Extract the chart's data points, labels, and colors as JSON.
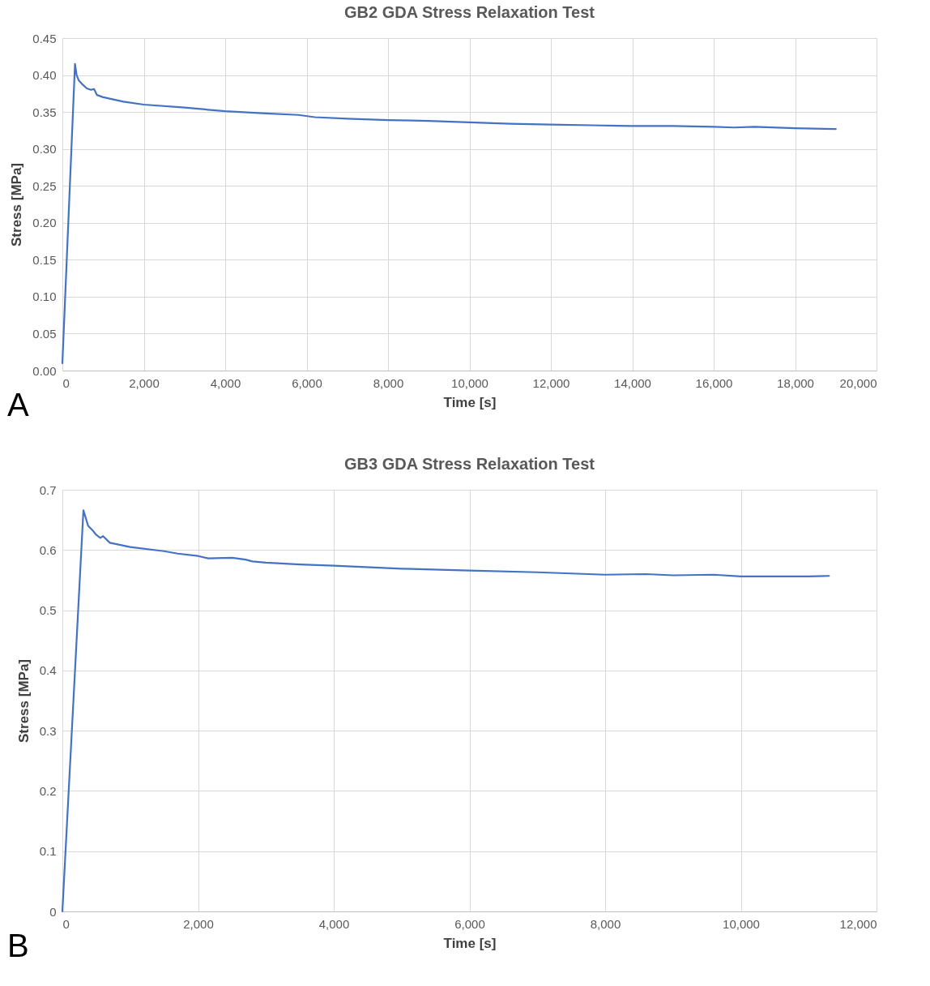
{
  "chart_data": [
    {
      "type": "line",
      "title": "GB2 GDA Stress Relaxation Test",
      "xlabel": "Time [s]",
      "ylabel": "Stress [MPa]",
      "annotations": [
        "A"
      ],
      "grid": true,
      "marker": "none",
      "line_style": "solid",
      "xlim": [
        0,
        20000
      ],
      "ylim": [
        0,
        0.45
      ],
      "xticks": [
        0,
        {
          "value": 2000,
          "label": "2,000"
        },
        {
          "value": 4000,
          "label": "4,000"
        },
        {
          "value": 6000,
          "label": "6,000"
        },
        {
          "value": 8000,
          "label": "8,000"
        },
        {
          "value": 10000,
          "label": "10,000"
        },
        {
          "value": 12000,
          "label": "12,000"
        },
        {
          "value": 14000,
          "label": "14,000"
        },
        {
          "value": 16000,
          "label": "16,000"
        },
        {
          "value": 18000,
          "label": "18,000"
        },
        {
          "value": 20000,
          "label": "20,000"
        }
      ],
      "yticks": [
        {
          "value": 0,
          "label": "0.00"
        },
        {
          "value": 0.05,
          "label": "0.05"
        },
        {
          "value": 0.1,
          "label": "0.10"
        },
        {
          "value": 0.15,
          "label": "0.15"
        },
        {
          "value": 0.2,
          "label": "0.20"
        },
        {
          "value": 0.25,
          "label": "0.25"
        },
        {
          "value": 0.3,
          "label": "0.30"
        },
        {
          "value": 0.35,
          "label": "0.35"
        },
        {
          "value": 0.4,
          "label": "0.40"
        },
        {
          "value": 0.45,
          "label": "0.45"
        }
      ],
      "x": [
        0,
        310,
        350,
        400,
        500,
        600,
        700,
        780,
        850,
        1000,
        1500,
        2000,
        3000,
        4000,
        5000,
        5800,
        6200,
        7000,
        8000,
        9000,
        10000,
        11000,
        12000,
        13000,
        14000,
        15000,
        16000,
        16500,
        17000,
        18000,
        19000
      ],
      "series": [
        {
          "color": "#4472c4",
          "values": [
            0.01,
            0.415,
            0.4,
            0.393,
            0.387,
            0.382,
            0.38,
            0.381,
            0.373,
            0.37,
            0.364,
            0.36,
            0.356,
            0.351,
            0.348,
            0.346,
            0.343,
            0.341,
            0.339,
            0.338,
            0.336,
            0.334,
            0.333,
            0.332,
            0.331,
            0.331,
            0.33,
            0.329,
            0.33,
            0.328,
            0.327
          ]
        }
      ]
    },
    {
      "type": "line",
      "title": "GB3 GDA Stress Relaxation Test",
      "xlabel": "Time [s]",
      "ylabel": "Stress [MPa]",
      "annotations": [
        "B"
      ],
      "grid": true,
      "marker": "none",
      "line_style": "solid",
      "xlim": [
        0,
        12000
      ],
      "ylim": [
        0,
        0.7
      ],
      "xticks": [
        0,
        {
          "value": 2000,
          "label": "2,000"
        },
        {
          "value": 4000,
          "label": "4,000"
        },
        {
          "value": 6000,
          "label": "6,000"
        },
        {
          "value": 8000,
          "label": "8,000"
        },
        {
          "value": 10000,
          "label": "10,000"
        },
        {
          "value": 12000,
          "label": "12,000"
        }
      ],
      "yticks": [
        0,
        0.1,
        0.2,
        0.3,
        0.4,
        0.5,
        0.6,
        0.7
      ],
      "x": [
        0,
        310,
        380,
        450,
        500,
        560,
        600,
        700,
        1000,
        1500,
        1700,
        2000,
        2150,
        2500,
        2700,
        2800,
        3000,
        3500,
        4000,
        5000,
        6000,
        7000,
        7500,
        8000,
        8600,
        9000,
        9600,
        10000,
        10500,
        11000,
        11300
      ],
      "series": [
        {
          "color": "#4472c4",
          "values": [
            0,
            0.666,
            0.64,
            0.632,
            0.625,
            0.62,
            0.623,
            0.612,
            0.605,
            0.598,
            0.594,
            0.59,
            0.586,
            0.587,
            0.584,
            0.581,
            0.579,
            0.576,
            0.574,
            0.569,
            0.566,
            0.563,
            0.561,
            0.559,
            0.56,
            0.558,
            0.559,
            0.556,
            0.556,
            0.556,
            0.557
          ]
        }
      ]
    }
  ]
}
